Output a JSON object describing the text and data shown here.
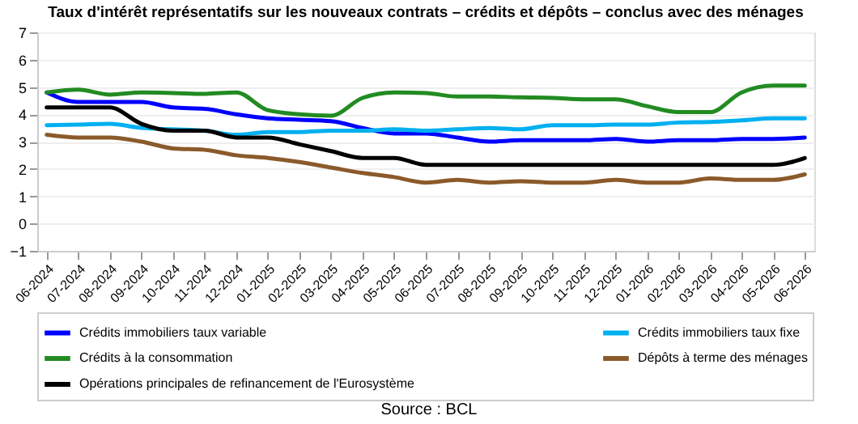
{
  "chart_data": {
    "type": "line",
    "title": "Taux d'intérêt représentatifs sur les nouveaux contrats – crédits et dépôts – conclus avec des ménages",
    "categories": [
      "06-2024",
      "07-2024",
      "08-2024",
      "09-2024",
      "10-2024",
      "11-2024",
      "12-2024",
      "01-2025",
      "02-2025",
      "03-2025",
      "04-2025",
      "05-2025",
      "06-2025",
      "07-2025",
      "08-2025",
      "09-2025",
      "10-2025",
      "11-2025",
      "12-2025",
      "01-2026",
      "02-2026",
      "03-2026",
      "04-2026",
      "05-2026",
      "06-2026"
    ],
    "series": [
      {
        "name": "Crédits immobiliers taux variable",
        "color": "#0000ff",
        "values": [
          4.8,
          4.45,
          4.45,
          4.45,
          4.25,
          4.2,
          4.0,
          3.85,
          3.8,
          3.75,
          3.5,
          3.3,
          3.3,
          3.15,
          3.0,
          3.05,
          3.05,
          3.05,
          3.1,
          3.0,
          3.05,
          3.05,
          3.1,
          3.1,
          3.15
        ]
      },
      {
        "name": "Crédits immobiliers taux fixe",
        "color": "#00b0f0",
        "values": [
          3.6,
          3.62,
          3.65,
          3.5,
          3.45,
          3.4,
          3.25,
          3.35,
          3.35,
          3.4,
          3.4,
          3.45,
          3.4,
          3.45,
          3.5,
          3.45,
          3.6,
          3.6,
          3.62,
          3.62,
          3.7,
          3.72,
          3.78,
          3.85,
          3.85
        ]
      },
      {
        "name": "Crédits à la consommation",
        "color": "#228b22",
        "values": [
          4.8,
          4.9,
          4.72,
          4.8,
          4.78,
          4.75,
          4.8,
          4.15,
          4.0,
          3.95,
          4.6,
          4.8,
          4.78,
          4.65,
          4.65,
          4.62,
          4.6,
          4.55,
          4.55,
          4.3,
          4.08,
          4.08,
          4.8,
          5.05,
          5.05
        ]
      },
      {
        "name": "Dépôts à terme des ménages",
        "color": "#8b5a2b",
        "values": [
          3.25,
          3.15,
          3.15,
          3.0,
          2.75,
          2.7,
          2.5,
          2.4,
          2.25,
          2.05,
          1.85,
          1.7,
          1.5,
          1.6,
          1.5,
          1.55,
          1.5,
          1.5,
          1.6,
          1.5,
          1.5,
          1.65,
          1.6,
          1.6,
          1.8
        ]
      },
      {
        "name": "Opérations principales de refinancement de l'Eurosystème",
        "color": "#000000",
        "values": [
          4.25,
          4.25,
          4.25,
          3.65,
          3.4,
          3.4,
          3.15,
          3.15,
          2.9,
          2.65,
          2.4,
          2.4,
          2.15,
          2.15,
          2.15,
          2.15,
          2.15,
          2.15,
          2.15,
          2.15,
          2.15,
          2.15,
          2.15,
          2.15,
          2.4
        ]
      }
    ],
    "ylim": [
      -1,
      7
    ],
    "yticks": [
      -1,
      0,
      1,
      2,
      3,
      4,
      5,
      6,
      7
    ],
    "grid": "y",
    "legend": "bottom",
    "line_style": "solid",
    "annotations": [
      "Source : BCL"
    ]
  }
}
